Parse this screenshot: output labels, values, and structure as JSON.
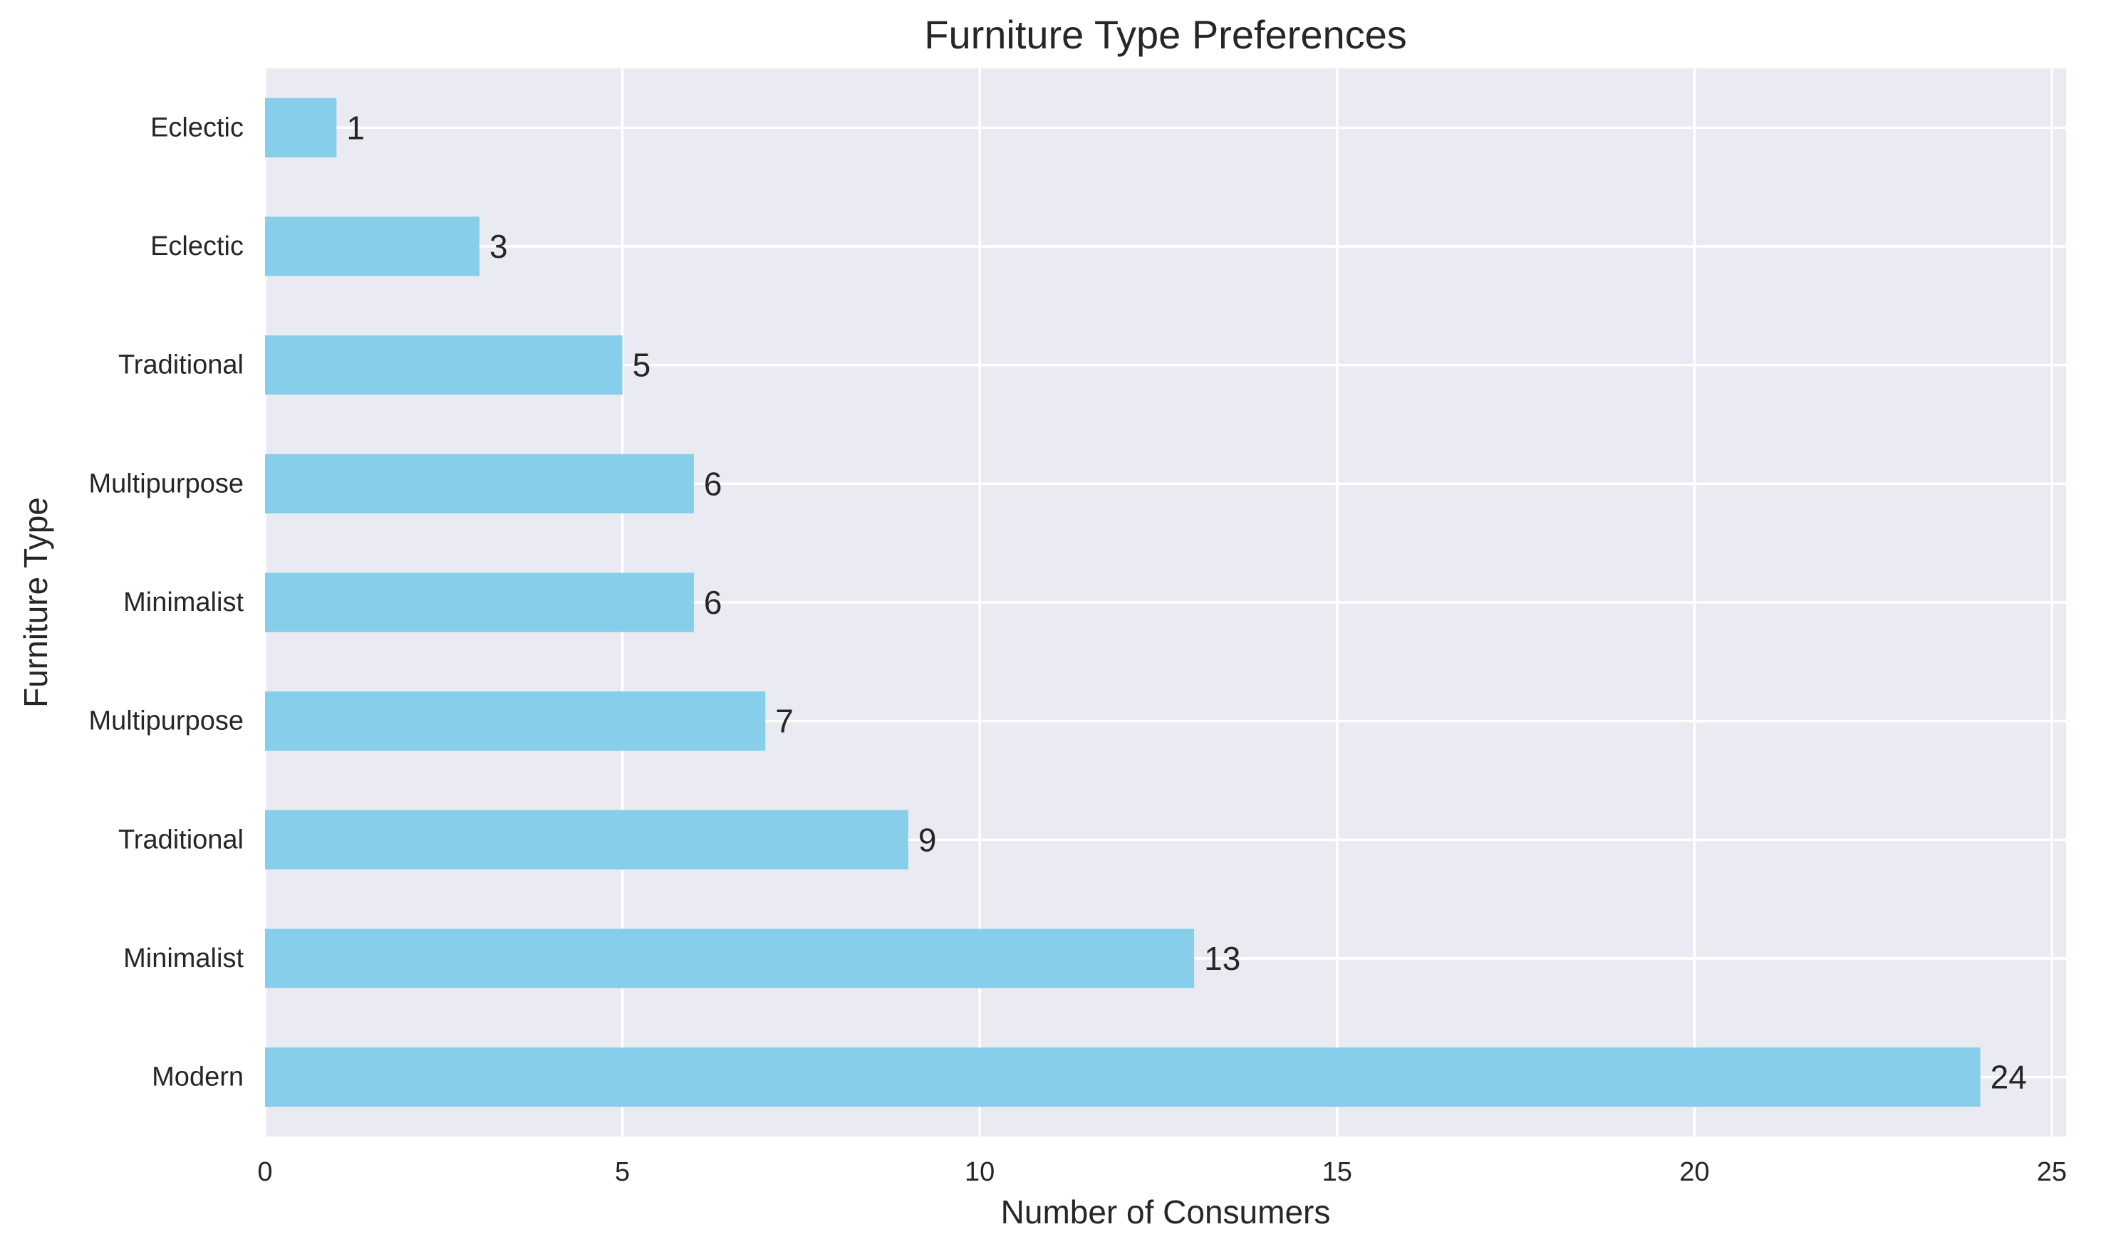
{
  "chart_data": {
    "type": "bar",
    "orientation": "horizontal",
    "title": "Furniture Type Preferences",
    "xlabel": "Number of Consumers",
    "ylabel": "Furniture Type",
    "categories": [
      "Modern",
      "Minimalist",
      "Traditional",
      "Multipurpose",
      "Minimalist",
      "Multipurpose",
      "Traditional",
      "Eclectic",
      "Eclectic"
    ],
    "values": [
      24,
      13,
      9,
      7,
      6,
      6,
      5,
      3,
      1
    ],
    "data_labels": [
      "24",
      "13",
      "9",
      "7",
      "6",
      "6",
      "5",
      "3",
      "1"
    ],
    "xlim": [
      0,
      25.2
    ],
    "xticks": [
      0,
      5,
      10,
      15,
      20,
      25
    ],
    "xtick_labels": [
      "0",
      "5",
      "10",
      "15",
      "20",
      "25"
    ],
    "bar_color": "#87ceeb",
    "background_color": "#eaeaf2",
    "grid": true
  }
}
